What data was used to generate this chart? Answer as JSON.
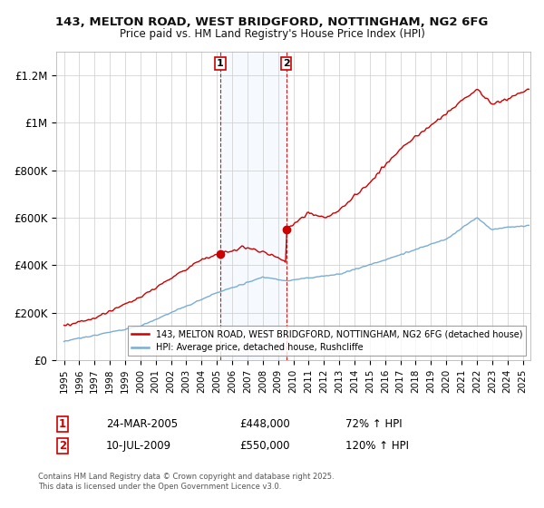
{
  "title1": "143, MELTON ROAD, WEST BRIDGFORD, NOTTINGHAM, NG2 6FG",
  "title2": "Price paid vs. HM Land Registry's House Price Index (HPI)",
  "ylim": [
    0,
    1300000
  ],
  "xlim_start": 1994.5,
  "xlim_end": 2025.5,
  "yticks": [
    0,
    200000,
    400000,
    600000,
    800000,
    1000000,
    1200000
  ],
  "ytick_labels": [
    "£0",
    "£200K",
    "£400K",
    "£600K",
    "£800K",
    "£1M",
    "£1.2M"
  ],
  "xticks": [
    1995,
    1996,
    1997,
    1998,
    1999,
    2000,
    2001,
    2002,
    2003,
    2004,
    2005,
    2006,
    2007,
    2008,
    2009,
    2010,
    2011,
    2012,
    2013,
    2014,
    2015,
    2016,
    2017,
    2018,
    2019,
    2020,
    2021,
    2022,
    2023,
    2024,
    2025
  ],
  "legend_red": "143, MELTON ROAD, WEST BRIDGFORD, NOTTINGHAM, NG2 6FG (detached house)",
  "legend_blue": "HPI: Average price, detached house, Rushcliffe",
  "marker1_x": 2005.22,
  "marker1_y": 448000,
  "marker2_x": 2009.53,
  "marker2_y": 550000,
  "marker1_label": "1",
  "marker2_label": "2",
  "marker1_date": "24-MAR-2005",
  "marker1_price": "£448,000",
  "marker1_hpi": "72% ↑ HPI",
  "marker2_date": "10-JUL-2009",
  "marker2_price": "£550,000",
  "marker2_hpi": "120% ↑ HPI",
  "red_color": "#cc0000",
  "blue_color": "#7aadd4",
  "shade_color": "#ddeeff",
  "marker_box_color": "#cc0000",
  "footer": "Contains HM Land Registry data © Crown copyright and database right 2025.\nThis data is licensed under the Open Government Licence v3.0.",
  "background_color": "#ffffff",
  "grid_color": "#cccccc"
}
